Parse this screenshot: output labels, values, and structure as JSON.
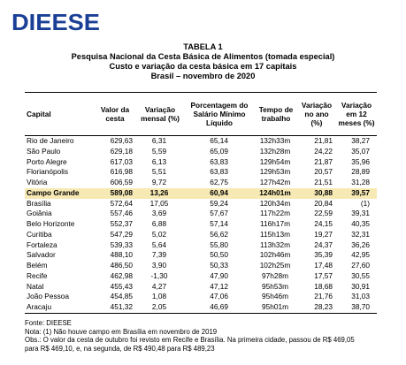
{
  "logo": {
    "text": "DIEESE",
    "color": "#1a3f96"
  },
  "titles": {
    "line1": "TABELA 1",
    "line2": "Pesquisa Nacional da Cesta Básica de Alimentos (tomada especial)",
    "line3": "Custo e variação da cesta básica em 17 capitais",
    "line4": "Brasil – novembro de 2020"
  },
  "table": {
    "headers": [
      "Capital",
      "Valor da cesta",
      "Variação mensal (%)",
      "Porcentagem do Salário Mínimo Líquido",
      "Tempo de trabalho",
      "Variação no ano (%)",
      "Variação em 12 meses (%)"
    ],
    "highlight_color": "#f6e9b4",
    "rows": [
      [
        "Rio de Janeiro",
        "629,63",
        "6,31",
        "65,14",
        "132h33m",
        "21,81",
        "38,27"
      ],
      [
        "São Paulo",
        "629,18",
        "5,59",
        "65,09",
        "132h28m",
        "24,22",
        "35,07"
      ],
      [
        "Porto Alegre",
        "617,03",
        "6,13",
        "63,83",
        "129h54m",
        "21,87",
        "35,96"
      ],
      [
        "Florianópolis",
        "616,98",
        "5,51",
        "63,83",
        "129h53m",
        "20,57",
        "28,89"
      ],
      [
        "Vitória",
        "606,59",
        "9,72",
        "62,75",
        "127h42m",
        "21,51",
        "31,28"
      ],
      [
        "Campo Grande",
        "589,08",
        "13,26",
        "60,94",
        "124h01m",
        "30,88",
        "39,57"
      ],
      [
        "Brasília",
        "572,64",
        "17,05",
        "59,24",
        "120h34m",
        "20,84",
        "(1)"
      ],
      [
        "Goiânia",
        "557,46",
        "3,69",
        "57,67",
        "117h22m",
        "22,59",
        "39,31"
      ],
      [
        "Belo Horizonte",
        "552,37",
        "6,88",
        "57,14",
        "116h17m",
        "24,15",
        "40,35"
      ],
      [
        "Curitiba",
        "547,29",
        "5,02",
        "56,62",
        "115h13m",
        "19,27",
        "32,31"
      ],
      [
        "Fortaleza",
        "539,33",
        "5,64",
        "55,80",
        "113h32m",
        "24,37",
        "36,26"
      ],
      [
        "Salvador",
        "488,10",
        "7,39",
        "50,50",
        "102h46m",
        "35,39",
        "42,95"
      ],
      [
        "Belém",
        "486,50",
        "3,90",
        "50,33",
        "102h25m",
        "17,48",
        "27,60"
      ],
      [
        "Recife",
        "462,98",
        "-1,30",
        "47,90",
        "97h28m",
        "17,57",
        "30,55"
      ],
      [
        "Natal",
        "455,43",
        "4,27",
        "47,12",
        "95h53m",
        "18,68",
        "30,91"
      ],
      [
        "João Pessoa",
        "454,85",
        "1,08",
        "47,06",
        "95h46m",
        "21,76",
        "31,03"
      ],
      [
        "Aracaju",
        "451,32",
        "2,05",
        "46,69",
        "95h01m",
        "28,23",
        "38,70"
      ]
    ]
  },
  "notes": {
    "source": "Fonte: DIEESE",
    "note1": "Nota: (1) Não houve campo em Brasília em novembro de 2019",
    "obs_line1": "Obs.: O valor da cesta de outubro foi revisto em Recife e Brasília. Na primeira cidade, passou de R$ 469,05",
    "obs_line2": "para R$ 469,10, e, na segunda, de R$ 490,48 para R$ 489,23"
  }
}
